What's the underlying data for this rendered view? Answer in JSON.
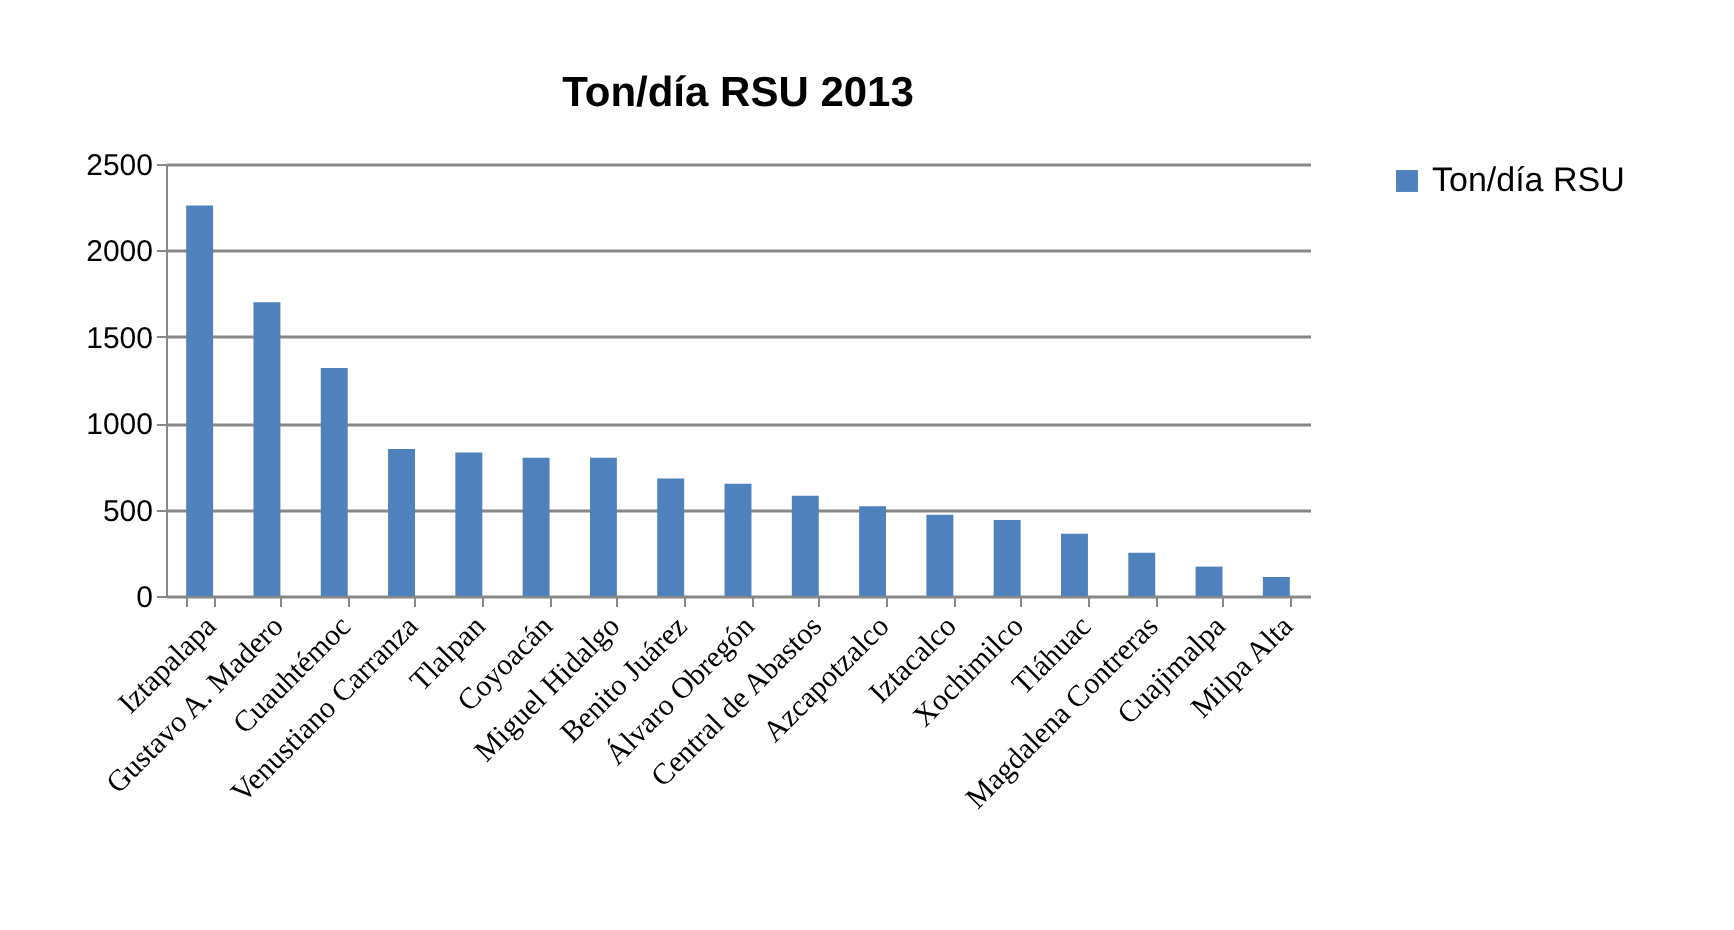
{
  "chart_data": {
    "type": "bar",
    "title": "Ton/día  RSU 2013",
    "categories": [
      "Iztapalapa",
      "Gustavo A. Madero",
      "Cuauhtémoc",
      "Venustiano  Carranza",
      "Tlalpan",
      "Coyoacán",
      "Miguel  Hidalgo",
      "Benito Juárez",
      "Álvaro   Obregón",
      "Central de  Abastos",
      "Azcapotzalco",
      "Iztacalco",
      "Xochimilco",
      "Tláhuac",
      "Magdalena  Contreras",
      "Cuajimalpa",
      "Milpa  Alta"
    ],
    "series": [
      {
        "name": "Ton/día  RSU",
        "color": "#4f81bd",
        "values": [
          2260,
          1700,
          1320,
          850,
          830,
          800,
          800,
          680,
          650,
          580,
          520,
          470,
          440,
          360,
          250,
          170,
          110
        ]
      }
    ],
    "ylim": [
      0,
      2500
    ],
    "yticks": [
      0,
      500,
      1000,
      1500,
      2000,
      2500
    ],
    "grid": "y",
    "legend": "right"
  }
}
